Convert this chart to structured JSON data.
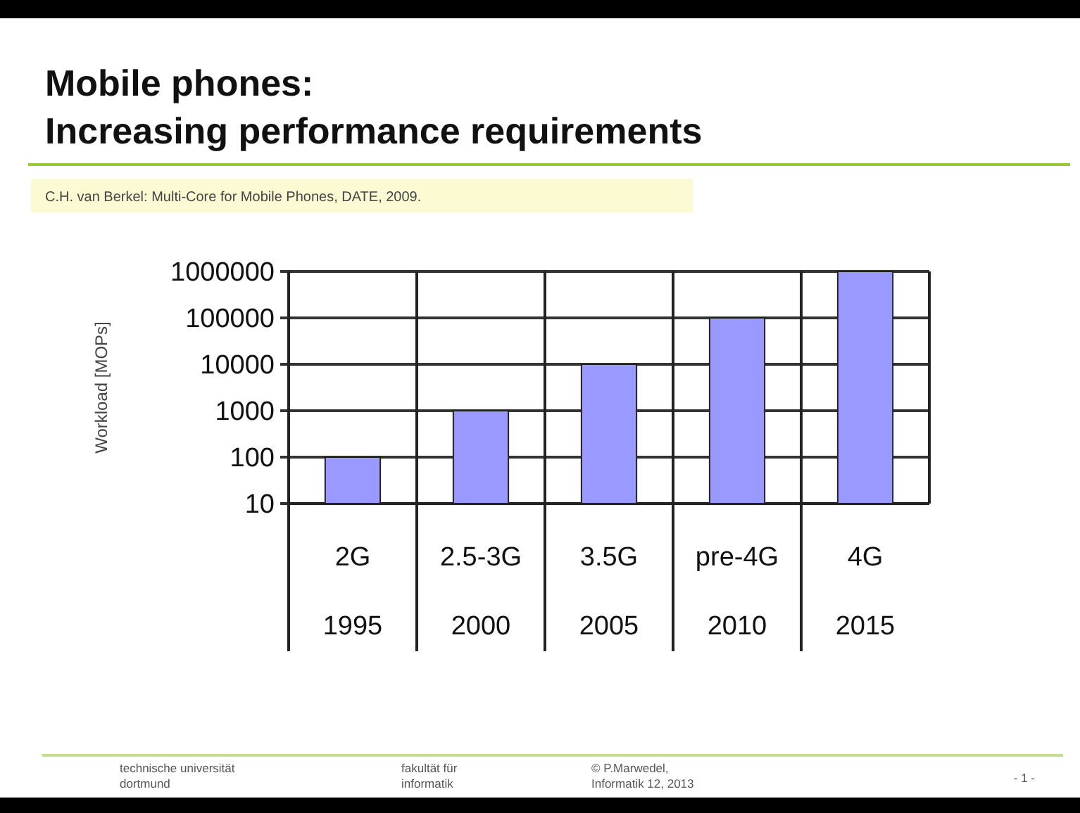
{
  "chart_data": {
    "type": "bar",
    "title": "Mobile phones:\nIncreasing performance requirements",
    "subtitle": "C.H. van Berkel: Multi-Core for Mobile Phones, DATE, 2009.",
    "ylabel": "Workload [MOPs]",
    "categories": [
      "2G\n1995",
      "2.5-3G\n2000",
      "3.5G\n2005",
      "pre-4G\n2010",
      "4G\n2015"
    ],
    "values": [
      100,
      1000,
      10000,
      100000,
      1000000
    ],
    "color": "#9999ff",
    "log": true,
    "ylim": [
      10,
      1000000
    ],
    "yticks": [
      10,
      100,
      1000,
      10000,
      100000,
      1000000
    ],
    "grid": "y",
    "annotations": [
      "technische universität\ndortmund",
      "fakultät für\ninformatik",
      "© P.Marwedel,\nInformatik 12, 2013",
      "- 1 -"
    ]
  }
}
